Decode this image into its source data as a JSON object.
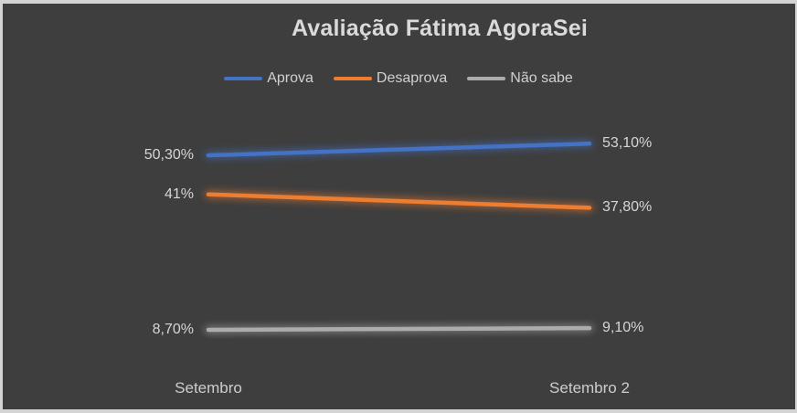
{
  "theme": {
    "background": "#3E3E3E",
    "frame_border": "#D4D4D4",
    "title_color": "#DADADA",
    "label_color": "#D6D6D6",
    "axis_label_color": "#CDCDCD",
    "legend_text_color": "#D0D0D0"
  },
  "chart_data": {
    "type": "line",
    "title": "Avaliação Fátima AgoraSei",
    "categories": [
      "Setembro",
      "Setembro 2"
    ],
    "series": [
      {
        "name": "Aprova",
        "color": "#4472C4",
        "values": [
          50.3,
          53.1
        ],
        "labels": [
          "50,30%",
          "53,10%"
        ]
      },
      {
        "name": "Desaprova",
        "color": "#ED7D31",
        "values": [
          41.0,
          37.8
        ],
        "labels": [
          "41%",
          "37,80%"
        ]
      },
      {
        "name": "Não sabe",
        "color": "#ACACAC",
        "values": [
          8.7,
          9.1
        ],
        "labels": [
          "8,70%",
          "9,10%"
        ]
      }
    ],
    "ylim": [
      0,
      60
    ],
    "grid": false,
    "axes_visible": false,
    "data_labels": true,
    "legend_position": "top",
    "line_glow": true
  }
}
